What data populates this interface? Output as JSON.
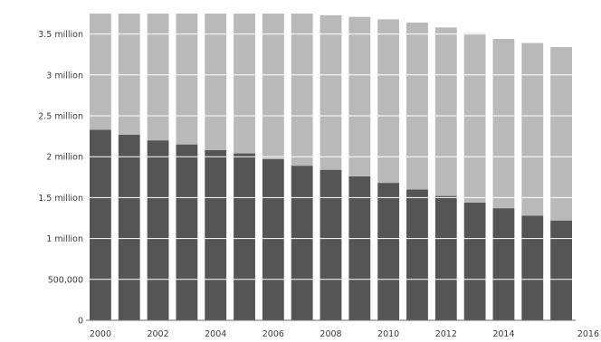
{
  "chart_data": {
    "type": "bar",
    "stacked": true,
    "x": [
      "2000",
      "2001",
      "2002",
      "2003",
      "2004",
      "2005",
      "2006",
      "2007",
      "2008",
      "2009",
      "2010",
      "2011",
      "2012",
      "2013",
      "2014",
      "2015",
      "2016"
    ],
    "x_tick_labels": [
      "2000",
      "2002",
      "2004",
      "2006",
      "2008",
      "2010",
      "2012",
      "2014",
      "2016"
    ],
    "y_tick_labels": [
      "0",
      "500,000",
      "1 million",
      "1.5 million",
      "2 million",
      "2.5 million",
      "3 million",
      "3.5 million"
    ],
    "y_ticks": [
      0,
      500000,
      1000000,
      1500000,
      2000000,
      2500000,
      3000000,
      3500000
    ],
    "ylim": [
      0,
      3750000
    ],
    "series": [
      {
        "color": "#555555",
        "values": [
          2330000,
          2270000,
          2200000,
          2150000,
          2080000,
          2040000,
          1970000,
          1890000,
          1840000,
          1760000,
          1680000,
          1600000,
          1520000,
          1440000,
          1370000,
          1280000,
          1220000
        ]
      },
      {
        "color": "#b9b9b9",
        "values": [
          1420000,
          1480000,
          1550000,
          1600000,
          1670000,
          1710000,
          1780000,
          1860000,
          1890000,
          1950000,
          2000000,
          2040000,
          2060000,
          2070000,
          2070000,
          2110000,
          2120000
        ]
      }
    ],
    "title": "",
    "xlabel": "",
    "ylabel": "",
    "legend": "none",
    "grid": true
  }
}
